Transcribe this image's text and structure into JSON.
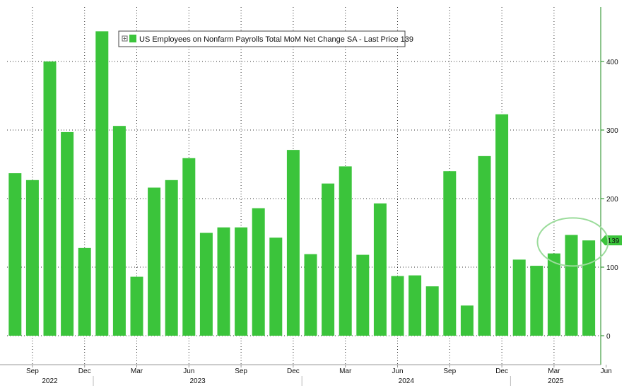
{
  "chart_data": {
    "type": "bar",
    "legend": "US Employees on Nonfarm Payrolls Total MoM Net Change SA - Last Price 139",
    "last_price_label": "139",
    "last_value": 139,
    "ylim": [
      -40,
      460
    ],
    "yticks": [
      0,
      100,
      200,
      300,
      400
    ],
    "grid": true,
    "legend_position": "top-left",
    "colors": {
      "bar": "#3bc43b",
      "bar_edge": "#2fa82f",
      "highlight_circle": "#9bdc9b",
      "axis": "#1a8a1a",
      "grid": "#333333"
    },
    "annotation": "circle around last three bars",
    "categories": [
      "2022-08",
      "2022-09",
      "2022-10",
      "2022-11",
      "2022-12",
      "2023-01",
      "2023-02",
      "2023-03",
      "2023-04",
      "2023-05",
      "2023-06",
      "2023-07",
      "2023-08",
      "2023-09",
      "2023-10",
      "2023-11",
      "2023-12",
      "2024-01",
      "2024-02",
      "2024-03",
      "2024-04",
      "2024-05",
      "2024-06",
      "2024-07",
      "2024-08",
      "2024-09",
      "2024-10",
      "2024-11",
      "2024-12",
      "2025-01",
      "2025-02",
      "2025-03",
      "2025-04",
      "2025-05"
    ],
    "values": [
      237,
      227,
      400,
      297,
      128,
      444,
      306,
      86,
      216,
      227,
      259,
      150,
      158,
      158,
      186,
      143,
      271,
      119,
      222,
      247,
      118,
      193,
      87,
      88,
      72,
      240,
      44,
      262,
      323,
      111,
      102,
      120,
      147,
      139
    ],
    "x_month_labels": [
      {
        "index": 1,
        "label": "Sep"
      },
      {
        "index": 4,
        "label": "Dec"
      },
      {
        "index": 7,
        "label": "Mar"
      },
      {
        "index": 10,
        "label": "Jun"
      },
      {
        "index": 13,
        "label": "Sep"
      },
      {
        "index": 16,
        "label": "Dec"
      },
      {
        "index": 19,
        "label": "Mar"
      },
      {
        "index": 22,
        "label": "Jun"
      },
      {
        "index": 25,
        "label": "Sep"
      },
      {
        "index": 28,
        "label": "Dec"
      },
      {
        "index": 31,
        "label": "Mar"
      },
      {
        "index": 34,
        "label": "Jun"
      }
    ],
    "x_year_labels": [
      {
        "label": "2022",
        "from": 0,
        "to": 4
      },
      {
        "label": "2023",
        "from": 5,
        "to": 16
      },
      {
        "label": "2024",
        "from": 17,
        "to": 28
      },
      {
        "label": "2025",
        "from": 29,
        "to": 34
      }
    ]
  }
}
